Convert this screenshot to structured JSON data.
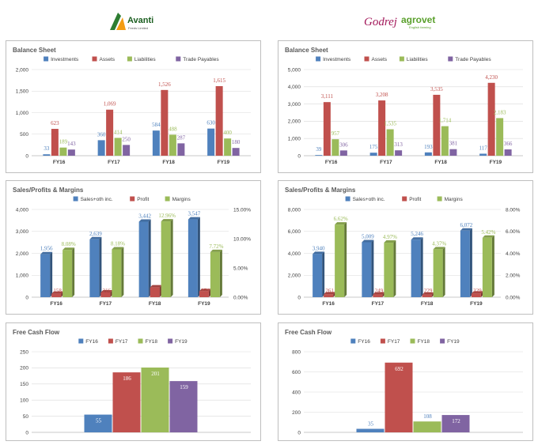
{
  "logos": {
    "left": {
      "name": "Avanti",
      "sub": "Feeds Limited"
    },
    "right": {
      "name": "agrovet",
      "brand": "Godrej",
      "sub": "English farming"
    }
  },
  "colors": {
    "investments": "#4f81bd",
    "assets": "#c0504d",
    "liabilities": "#9bbb59",
    "trade_payables": "#8064a2"
  },
  "chart_data": [
    {
      "id": "avanti-balance",
      "type": "bar",
      "title": "Balance Sheet",
      "categories": [
        "FY16",
        "FY17",
        "FY18",
        "FY19"
      ],
      "series": [
        {
          "name": "Investments",
          "values": [
            33,
            360,
            584,
            630
          ],
          "color": "#4f81bd"
        },
        {
          "name": "Assets",
          "values": [
            623,
            1069,
            1526,
            1615
          ],
          "color": "#c0504d"
        },
        {
          "name": "Liabilities",
          "values": [
            189,
            414,
            488,
            400
          ],
          "color": "#9bbb59"
        },
        {
          "name": "Trade Payables",
          "values": [
            143,
            250,
            287,
            180
          ],
          "color": "#8064a2"
        }
      ],
      "ylim": [
        0,
        2000
      ],
      "yticks": [
        0,
        500,
        1000,
        1500,
        2000
      ],
      "ytick_labels": [
        "0",
        "500",
        "1,000",
        "1,500",
        "2,000"
      ],
      "data_labels": [
        [
          "33",
          "360",
          "584",
          "630"
        ],
        [
          "623",
          "1,069",
          "1,526",
          "1,615"
        ],
        [
          "189",
          "414",
          "488",
          "400"
        ],
        [
          "143",
          "250",
          "287",
          "180"
        ]
      ]
    },
    {
      "id": "godrej-balance",
      "type": "bar",
      "title": "Balance Sheet",
      "categories": [
        "FY16",
        "FY17",
        "FY18",
        "FY19"
      ],
      "series": [
        {
          "name": "Investments",
          "values": [
            39,
            175,
            193,
            117
          ],
          "color": "#4f81bd"
        },
        {
          "name": "Assets",
          "values": [
            3111,
            3208,
            3535,
            4230
          ],
          "color": "#c0504d"
        },
        {
          "name": "Liabilities",
          "values": [
            957,
            1535,
            1714,
            2183
          ],
          "color": "#9bbb59"
        },
        {
          "name": "Trade Payables",
          "values": [
            306,
            313,
            381,
            366
          ],
          "color": "#8064a2"
        }
      ],
      "ylim": [
        0,
        5000
      ],
      "yticks": [
        0,
        1000,
        2000,
        3000,
        4000,
        5000
      ],
      "ytick_labels": [
        "0",
        "1,000",
        "2,000",
        "3,000",
        "4,000",
        "5,000"
      ],
      "data_labels": [
        [
          "39",
          "175",
          "193",
          "117"
        ],
        [
          "3,111",
          "3,208",
          "3,535",
          "4,230"
        ],
        [
          "957",
          "1,535",
          "1,714",
          "2,183"
        ],
        [
          "306",
          "313",
          "381",
          "366"
        ]
      ]
    },
    {
      "id": "avanti-sales",
      "type": "bar",
      "title": "Sales/Profits & Margins",
      "categories": [
        "FY16",
        "FY17",
        "FY18",
        "FY19"
      ],
      "series": [
        {
          "name": "Sales+oth inc.",
          "values": [
            1956,
            2639,
            3442,
            3547
          ],
          "color": "#4f81bd",
          "axis": "left"
        },
        {
          "name": "Profit",
          "values": [
            158,
            216,
            446,
            274
          ],
          "color": "#c0504d",
          "axis": "left"
        },
        {
          "name": "Margins",
          "values": [
            8.08,
            8.18,
            12.96,
            7.72
          ],
          "color": "#9bbb59",
          "axis": "right"
        }
      ],
      "ylim": [
        0,
        4000
      ],
      "yticks": [
        0,
        1000,
        2000,
        3000,
        4000
      ],
      "ytick_labels": [
        "0",
        "1,000",
        "2,000",
        "3,000",
        "4,000"
      ],
      "y2lim": [
        0,
        15
      ],
      "y2ticks": [
        0,
        5,
        10,
        15
      ],
      "y2tick_labels": [
        "0.00%",
        "5.00%",
        "10.00%",
        "15.00%"
      ],
      "data_labels": [
        [
          "1,956",
          "2,639",
          "3,442",
          "3,547"
        ],
        [
          "158",
          "216",
          "446",
          "274"
        ],
        [
          "8.08%",
          "8.18%",
          "12.96%",
          "7.72%"
        ]
      ]
    },
    {
      "id": "godrej-sales",
      "type": "bar",
      "title": "Sales/Profits & Margins",
      "categories": [
        "FY16",
        "FY17",
        "FY18",
        "FY19"
      ],
      "series": [
        {
          "name": "Sales+oth inc.",
          "values": [
            3940,
            5009,
            5246,
            6072
          ],
          "color": "#4f81bd",
          "axis": "left"
        },
        {
          "name": "Profit",
          "values": [
            261,
            249,
            229,
            329
          ],
          "color": "#c0504d",
          "axis": "left"
        },
        {
          "name": "Margins",
          "values": [
            6.62,
            4.97,
            4.37,
            5.42
          ],
          "color": "#9bbb59",
          "axis": "right"
        }
      ],
      "ylim": [
        0,
        8000
      ],
      "yticks": [
        0,
        2000,
        4000,
        6000,
        8000
      ],
      "ytick_labels": [
        "0",
        "2,000",
        "4,000",
        "6,000",
        "8,000"
      ],
      "y2lim": [
        0,
        8
      ],
      "y2ticks": [
        0,
        2,
        4,
        6,
        8
      ],
      "y2tick_labels": [
        "0.00%",
        "2.00%",
        "4.00%",
        "6.00%",
        "8.00%"
      ],
      "data_labels": [
        [
          "3,940",
          "5,009",
          "5,246",
          "6,072"
        ],
        [
          "261",
          "249",
          "229",
          "329"
        ],
        [
          "6.62%",
          "4.97%",
          "4.37%",
          "5.42%"
        ]
      ]
    },
    {
      "id": "avanti-fcf",
      "type": "bar",
      "title": "Free Cash Flow",
      "categories": [
        "FY16",
        "FY17",
        "FY18",
        "FY19"
      ],
      "values": [
        55,
        186,
        201,
        159
      ],
      "colors": [
        "#4f81bd",
        "#c0504d",
        "#9bbb59",
        "#8064a2"
      ],
      "ylim": [
        0,
        250
      ],
      "yticks": [
        0,
        50,
        100,
        150,
        200,
        250
      ],
      "ytick_labels": [
        "0",
        "50",
        "100",
        "150",
        "200",
        "250"
      ],
      "data_labels": [
        "55",
        "186",
        "201",
        "159"
      ]
    },
    {
      "id": "godrej-fcf",
      "type": "bar",
      "title": "Free Cash Flow",
      "categories": [
        "FY16",
        "FY17",
        "FY18",
        "FY19"
      ],
      "values": [
        35,
        692,
        108,
        172
      ],
      "colors": [
        "#4f81bd",
        "#c0504d",
        "#9bbb59",
        "#8064a2"
      ],
      "ylim": [
        0,
        800
      ],
      "yticks": [
        0,
        200,
        400,
        600,
        800
      ],
      "ytick_labels": [
        "0",
        "200",
        "400",
        "600",
        "800"
      ],
      "data_labels": [
        "35",
        "692",
        "108",
        "172"
      ]
    }
  ]
}
